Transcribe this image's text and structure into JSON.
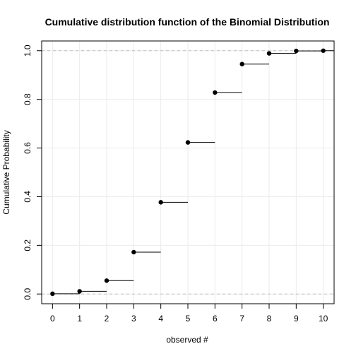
{
  "chart_data": {
    "type": "step",
    "title": "Cumulative distribution function of the Binomial Distribution",
    "xlabel": "observed #",
    "ylabel": "Cumulative Probability",
    "xlim": [
      -0.4,
      10.4
    ],
    "ylim": [
      -0.04,
      1.04
    ],
    "x_ticks": [
      0,
      1,
      2,
      3,
      4,
      5,
      6,
      7,
      8,
      9,
      10
    ],
    "y_ticks": [
      0.0,
      0.2,
      0.4,
      0.6,
      0.8,
      1.0
    ],
    "y_tick_labels": [
      "0.0",
      "0.2",
      "0.4",
      "0.6",
      "0.8",
      "1.0"
    ],
    "grid": true,
    "reference_lines_y": [
      0,
      1
    ],
    "series": [
      {
        "x": [
          0,
          1,
          2,
          3,
          4,
          5,
          6,
          7,
          8,
          9,
          10
        ],
        "values": [
          0.001,
          0.011,
          0.055,
          0.172,
          0.377,
          0.623,
          0.828,
          0.945,
          0.989,
          0.999,
          1.0
        ]
      }
    ],
    "colors": {
      "points": "#000000",
      "steps": "#000000",
      "grid": "#ebebeb",
      "reference": "#bebebe"
    }
  }
}
